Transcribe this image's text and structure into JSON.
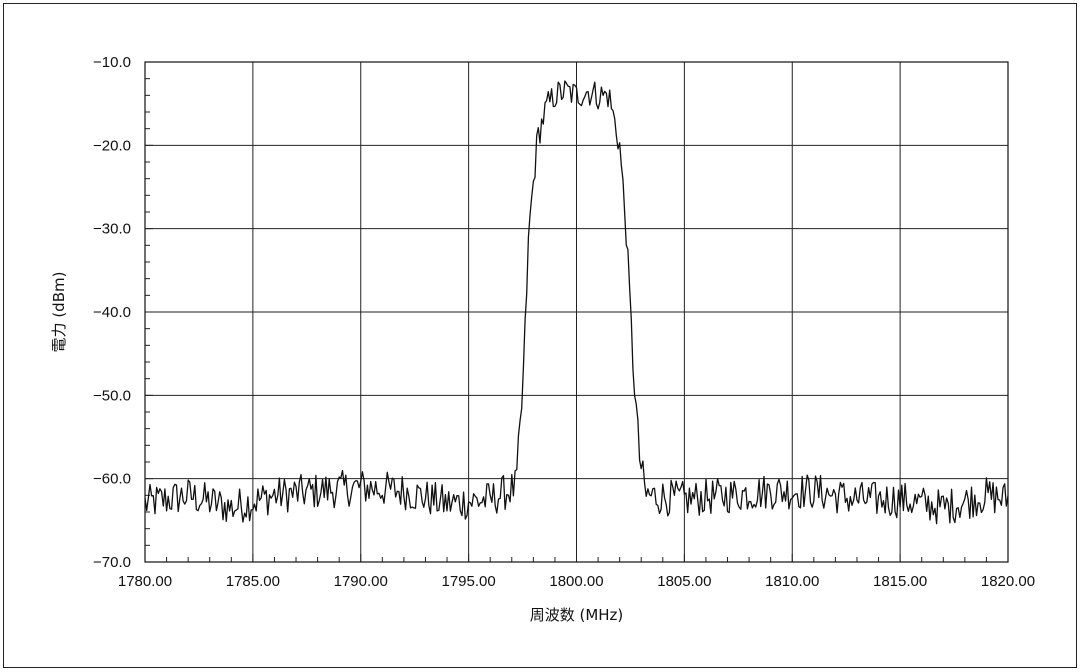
{
  "chart_data": {
    "type": "line",
    "title": "",
    "xlabel": "周波数 (MHz)",
    "ylabel": "電力 (dBm)",
    "xlim": [
      1780.0,
      1820.0
    ],
    "ylim": [
      -70.0,
      -10.0
    ],
    "x_ticks": [
      1780.0,
      1785.0,
      1790.0,
      1795.0,
      1800.0,
      1805.0,
      1810.0,
      1815.0,
      1820.0
    ],
    "x_tick_labels": [
      "1780.00",
      "1785.00",
      "1790.00",
      "1795.00",
      "1800.00",
      "1805.00",
      "1810.00",
      "1815.00",
      "1820.00"
    ],
    "y_ticks": [
      -10.0,
      -20.0,
      -30.0,
      -40.0,
      -50.0,
      -60.0,
      -70.0
    ],
    "y_tick_labels": [
      "−10.0",
      "−20.0",
      "−30.0",
      "−40.0",
      "−50.0",
      "−60.0",
      "−70.0"
    ],
    "grid": true,
    "legend": "none",
    "line_color": "#111111",
    "series": [
      {
        "x": [
          1780.0,
          1782.0,
          1784.0,
          1786.0,
          1788.0,
          1790.0,
          1792.0,
          1794.0,
          1796.0,
          1797.2,
          1797.5,
          1797.8,
          1798.2,
          1798.6,
          1799.0,
          1799.5,
          1800.0,
          1800.5,
          1801.0,
          1801.5,
          1802.0,
          1802.3,
          1802.6,
          1802.9,
          1803.2,
          1805.0,
          1807.0,
          1809.0,
          1811.0,
          1813.0,
          1815.0,
          1817.0,
          1819.0,
          1820.0
        ],
        "y": [
          -63.0,
          -62.0,
          -63.5,
          -62.0,
          -61.5,
          -61.0,
          -61.5,
          -63.0,
          -62.5,
          -61.0,
          -50.0,
          -30.0,
          -19.0,
          -15.5,
          -14.0,
          -13.5,
          -14.0,
          -13.5,
          -14.0,
          -14.0,
          -20.0,
          -30.0,
          -45.0,
          -57.0,
          -62.0,
          -62.5,
          -62.0,
          -61.5,
          -61.5,
          -62.5,
          -62.5,
          -63.5,
          -62.0,
          -62.5
        ],
        "noise_dB": 2.2
      }
    ]
  }
}
